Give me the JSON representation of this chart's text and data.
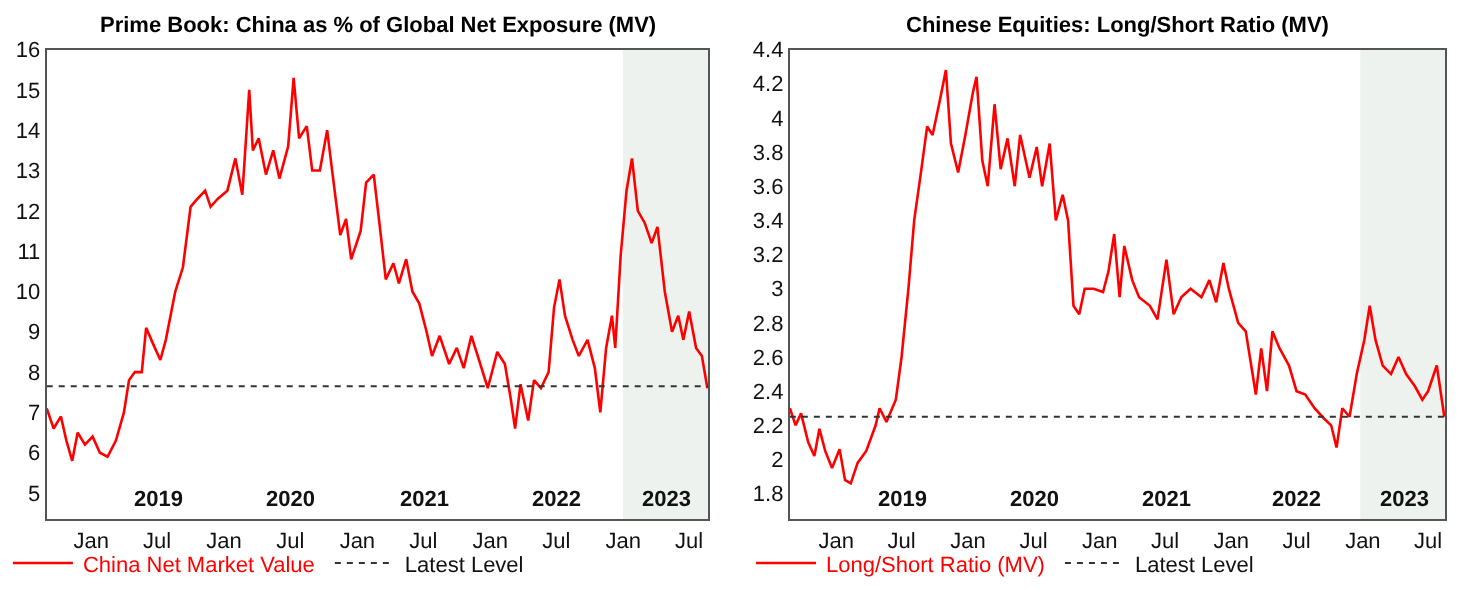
{
  "chart_data": [
    {
      "type": "line",
      "title": "Prime Book: China as % of Global Net Exposure (MV)",
      "xlim": [
        "2018-09-01",
        "2023-08-22"
      ],
      "ylim": [
        4.35,
        16
      ],
      "yticks": [
        5,
        6,
        7,
        8,
        9,
        10,
        11,
        12,
        13,
        14,
        15,
        16
      ],
      "xticks": [
        {
          "value": "2019-01-01",
          "label": "Jan"
        },
        {
          "value": "2019-07-01",
          "label": "Jul"
        },
        {
          "value": "2020-01-01",
          "label": "Jan"
        },
        {
          "value": "2020-07-01",
          "label": "Jul"
        },
        {
          "value": "2021-01-01",
          "label": "Jan"
        },
        {
          "value": "2021-07-01",
          "label": "Jul"
        },
        {
          "value": "2022-01-01",
          "label": "Jan"
        },
        {
          "value": "2022-07-01",
          "label": "Jul"
        },
        {
          "value": "2023-01-01",
          "label": "Jan"
        },
        {
          "value": "2023-07-01",
          "label": "Jul"
        }
      ],
      "grid": false,
      "legend": "bottom left",
      "ref_lines": [
        {
          "axis": "y",
          "value": 7.65,
          "label": "Latest Level",
          "color": "#333333",
          "line_style": "dotted"
        }
      ],
      "bands": [
        {
          "axis": "x",
          "from": "2022-12-31",
          "to": "2023-08-22",
          "color": "#eef2ee"
        }
      ],
      "annotations": [
        "2019",
        "2020",
        "2021",
        "2022",
        "2023"
      ],
      "series": [
        {
          "name": "China Net Market Value",
          "color": "#ff0000",
          "x": [
            "2018-09-01",
            "2018-09-20",
            "2018-10-10",
            "2018-10-25",
            "2018-11-10",
            "2018-11-25",
            "2018-12-15",
            "2019-01-05",
            "2019-01-25",
            "2019-02-15",
            "2019-03-10",
            "2019-04-01",
            "2019-04-15",
            "2019-05-01",
            "2019-05-20",
            "2019-06-01",
            "2019-06-20",
            "2019-07-10",
            "2019-07-25",
            "2019-08-20",
            "2019-09-10",
            "2019-10-01",
            "2019-10-20",
            "2019-11-10",
            "2019-11-25",
            "2019-12-15",
            "2020-01-10",
            "2020-02-01",
            "2020-02-20",
            "2020-03-10",
            "2020-03-20",
            "2020-04-05",
            "2020-04-25",
            "2020-05-15",
            "2020-06-01",
            "2020-06-25",
            "2020-07-10",
            "2020-07-25",
            "2020-08-15",
            "2020-08-30",
            "2020-09-20",
            "2020-10-10",
            "2020-10-25",
            "2020-11-15",
            "2020-12-01",
            "2020-12-15",
            "2021-01-10",
            "2021-01-25",
            "2021-02-15",
            "2021-03-05",
            "2021-03-20",
            "2021-04-10",
            "2021-04-25",
            "2021-05-15",
            "2021-06-01",
            "2021-06-20",
            "2021-07-10",
            "2021-07-25",
            "2021-08-15",
            "2021-09-10",
            "2021-10-01",
            "2021-10-20",
            "2021-11-10",
            "2021-12-01",
            "2021-12-25",
            "2022-01-20",
            "2022-02-10",
            "2022-02-25",
            "2022-03-10",
            "2022-03-25",
            "2022-04-15",
            "2022-05-01",
            "2022-05-20",
            "2022-06-10",
            "2022-06-25",
            "2022-07-10",
            "2022-07-25",
            "2022-08-15",
            "2022-09-01",
            "2022-09-25",
            "2022-10-15",
            "2022-10-30",
            "2022-11-15",
            "2022-12-01",
            "2022-12-10",
            "2022-12-25",
            "2023-01-10",
            "2023-01-25",
            "2023-02-10",
            "2023-03-01",
            "2023-03-20",
            "2023-04-05",
            "2023-04-25",
            "2023-05-15",
            "2023-06-01",
            "2023-06-15",
            "2023-07-01",
            "2023-07-20",
            "2023-08-05",
            "2023-08-20"
          ],
          "values": [
            7.1,
            6.6,
            6.9,
            6.3,
            5.8,
            6.5,
            6.2,
            6.4,
            6.0,
            5.9,
            6.3,
            7.0,
            7.8,
            8.0,
            8.0,
            9.1,
            8.7,
            8.3,
            8.8,
            10.0,
            10.6,
            12.1,
            12.3,
            12.5,
            12.1,
            12.3,
            12.5,
            13.3,
            12.4,
            15.0,
            13.5,
            13.8,
            12.9,
            13.5,
            12.8,
            13.6,
            15.3,
            13.8,
            14.1,
            13.0,
            13.0,
            14.0,
            12.9,
            11.4,
            11.8,
            10.8,
            11.5,
            12.7,
            12.9,
            11.5,
            10.3,
            10.7,
            10.2,
            10.8,
            10.0,
            9.7,
            9.0,
            8.4,
            8.9,
            8.2,
            8.6,
            8.1,
            8.9,
            8.3,
            7.6,
            8.5,
            8.2,
            7.4,
            6.6,
            7.7,
            6.8,
            7.8,
            7.6,
            8.0,
            9.6,
            10.3,
            9.4,
            8.8,
            8.4,
            8.8,
            8.1,
            7.0,
            8.6,
            9.4,
            8.6,
            10.9,
            12.5,
            13.3,
            12.0,
            11.7,
            11.2,
            11.6,
            10.0,
            9.0,
            9.4,
            8.8,
            9.5,
            8.6,
            8.4,
            7.6
          ]
        }
      ]
    },
    {
      "type": "line",
      "title": "Chinese Equities: Long/Short Ratio (MV)",
      "xlim": [
        "2018-08-25",
        "2023-08-18"
      ],
      "ylim": [
        1.65,
        4.4
      ],
      "yticks": [
        1.8,
        2,
        2.2,
        2.4,
        2.6,
        2.8,
        3,
        3.2,
        3.4,
        3.6,
        3.8,
        4,
        4.2,
        4.4
      ],
      "xticks": [
        {
          "value": "2019-01-01",
          "label": "Jan"
        },
        {
          "value": "2019-07-01",
          "label": "Jul"
        },
        {
          "value": "2020-01-01",
          "label": "Jan"
        },
        {
          "value": "2020-07-01",
          "label": "Jul"
        },
        {
          "value": "2021-01-01",
          "label": "Jan"
        },
        {
          "value": "2021-07-01",
          "label": "Jul"
        },
        {
          "value": "2022-01-01",
          "label": "Jan"
        },
        {
          "value": "2022-07-01",
          "label": "Jul"
        },
        {
          "value": "2023-01-01",
          "label": "Jan"
        },
        {
          "value": "2023-07-01",
          "label": "Jul"
        }
      ],
      "grid": false,
      "legend": "bottom left",
      "ref_lines": [
        {
          "axis": "y",
          "value": 2.25,
          "label": "Latest Level",
          "color": "#333333",
          "line_style": "dotted"
        }
      ],
      "bands": [
        {
          "axis": "x",
          "from": "2022-12-25",
          "to": "2023-08-18",
          "color": "#eef2ee"
        }
      ],
      "annotations": [
        "2019",
        "2020",
        "2021",
        "2022",
        "2023"
      ],
      "series": [
        {
          "name": "Long/Short Ratio (MV)",
          "color": "#ff0000",
          "x": [
            "2018-08-25",
            "2018-09-10",
            "2018-09-25",
            "2018-10-15",
            "2018-11-01",
            "2018-11-15",
            "2018-12-01",
            "2018-12-20",
            "2019-01-10",
            "2019-01-25",
            "2019-02-10",
            "2019-03-01",
            "2019-03-25",
            "2019-04-20",
            "2019-05-01",
            "2019-05-20",
            "2019-06-15",
            "2019-07-01",
            "2019-07-20",
            "2019-08-05",
            "2019-08-25",
            "2019-09-10",
            "2019-09-25",
            "2019-10-15",
            "2019-11-01",
            "2019-11-15",
            "2019-12-05",
            "2019-12-25",
            "2020-01-15",
            "2020-01-25",
            "2020-02-10",
            "2020-02-25",
            "2020-03-15",
            "2020-04-01",
            "2020-04-20",
            "2020-05-10",
            "2020-05-25",
            "2020-06-20",
            "2020-07-10",
            "2020-07-25",
            "2020-08-15",
            "2020-09-01",
            "2020-09-20",
            "2020-10-05",
            "2020-10-20",
            "2020-11-05",
            "2020-11-20",
            "2020-12-15",
            "2021-01-10",
            "2021-01-25",
            "2021-02-10",
            "2021-02-25",
            "2021-03-10",
            "2021-04-01",
            "2021-04-20",
            "2021-05-20",
            "2021-06-10",
            "2021-07-05",
            "2021-07-25",
            "2021-08-15",
            "2021-09-10",
            "2021-10-10",
            "2021-11-01",
            "2021-11-20",
            "2021-12-10",
            "2021-12-25",
            "2022-01-20",
            "2022-02-10",
            "2022-03-01",
            "2022-03-10",
            "2022-03-25",
            "2022-04-10",
            "2022-04-25",
            "2022-05-15",
            "2022-06-10",
            "2022-07-01",
            "2022-07-25",
            "2022-08-20",
            "2022-09-15",
            "2022-10-05",
            "2022-10-20",
            "2022-11-05",
            "2022-11-25",
            "2022-12-15",
            "2023-01-05",
            "2023-01-20",
            "2023-02-05",
            "2023-02-25",
            "2023-03-20",
            "2023-04-10",
            "2023-05-01",
            "2023-05-25",
            "2023-06-15",
            "2023-07-01",
            "2023-07-25",
            "2023-08-15"
          ],
          "values": [
            2.3,
            2.2,
            2.27,
            2.1,
            2.02,
            2.18,
            2.05,
            1.95,
            2.06,
            1.88,
            1.86,
            1.98,
            2.05,
            2.2,
            2.3,
            2.22,
            2.35,
            2.6,
            3.0,
            3.4,
            3.7,
            3.95,
            3.9,
            4.1,
            4.28,
            3.85,
            3.68,
            3.9,
            4.15,
            4.24,
            3.75,
            3.6,
            4.08,
            3.7,
            3.88,
            3.6,
            3.9,
            3.65,
            3.83,
            3.6,
            3.85,
            3.4,
            3.55,
            3.4,
            2.9,
            2.85,
            3.0,
            3.0,
            2.98,
            3.1,
            3.32,
            2.95,
            3.25,
            3.05,
            2.95,
            2.9,
            2.82,
            3.17,
            2.85,
            2.95,
            3.0,
            2.95,
            3.05,
            2.92,
            3.15,
            3.0,
            2.8,
            2.75,
            2.5,
            2.38,
            2.65,
            2.4,
            2.75,
            2.65,
            2.55,
            2.4,
            2.38,
            2.3,
            2.24,
            2.2,
            2.07,
            2.3,
            2.25,
            2.5,
            2.7,
            2.9,
            2.7,
            2.55,
            2.5,
            2.6,
            2.5,
            2.43,
            2.35,
            2.4,
            2.55,
            2.25
          ]
        }
      ]
    }
  ]
}
